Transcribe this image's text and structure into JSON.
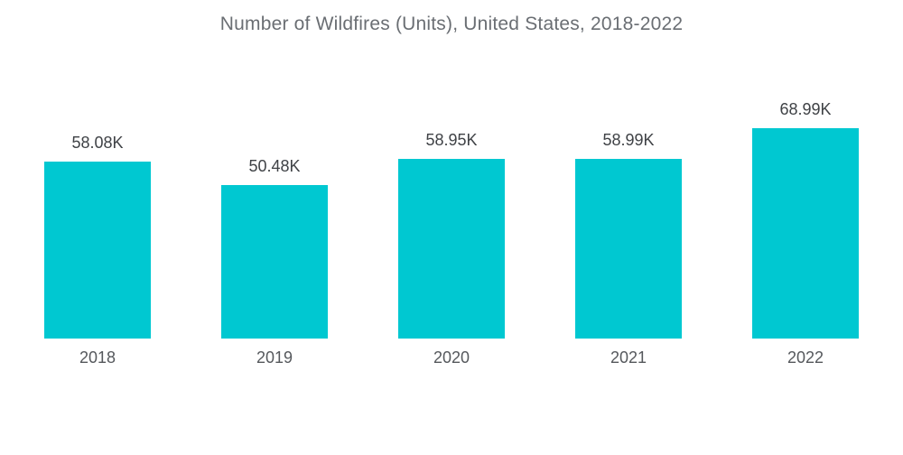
{
  "title": "Number of Wildfires (Units), United States, 2018-2022",
  "chart_data": {
    "type": "bar",
    "title": "Number of Wildfires (Units), United States, 2018-2022",
    "categories": [
      "2018",
      "2019",
      "2020",
      "2021",
      "2022"
    ],
    "values": [
      58.08,
      50.48,
      58.95,
      58.99,
      68.99
    ],
    "value_labels": [
      "58.08K",
      "50.48K",
      "58.95K",
      "58.99K",
      "68.99K"
    ],
    "unit": "K",
    "xlabel": "",
    "ylabel": "",
    "ylim": [
      0,
      70
    ],
    "grid": false,
    "legend": false,
    "axes_hidden": true,
    "bar_color": "#00C8D1",
    "title_color": "#6A6E73",
    "value_label_color": "#3F4246",
    "category_label_color": "#55585C",
    "background_color": "#FFFFFF"
  }
}
